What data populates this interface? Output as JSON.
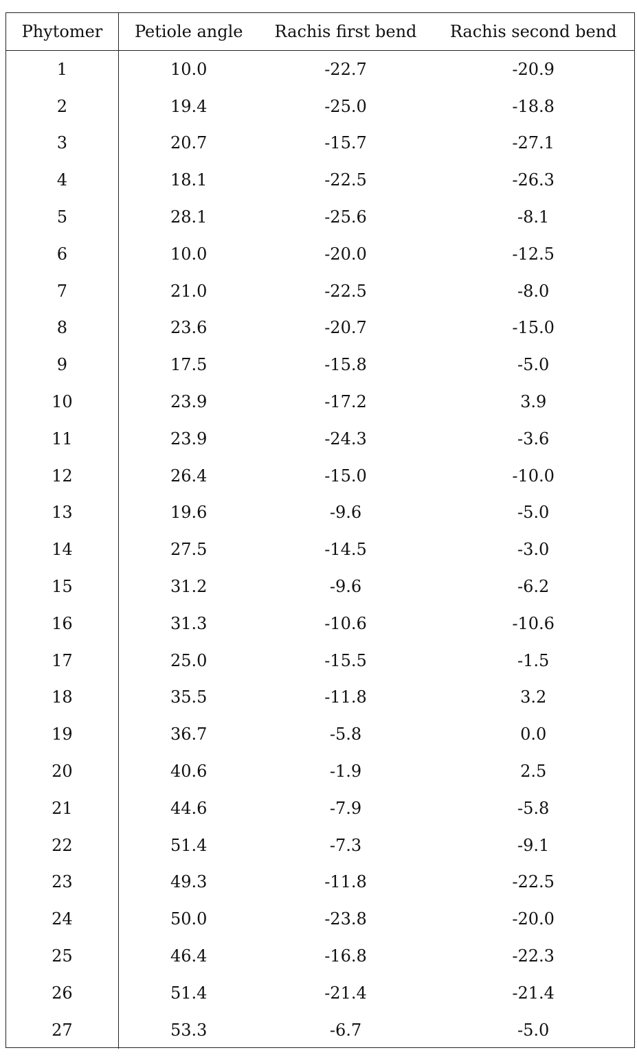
{
  "table": {
    "headers": [
      "Phytomer",
      "Petiole angle",
      "Rachis first bend",
      "Rachis second bend"
    ],
    "rows": [
      [
        "1",
        "10.0",
        "-22.7",
        "-20.9"
      ],
      [
        "2",
        "19.4",
        "-25.0",
        "-18.8"
      ],
      [
        "3",
        "20.7",
        "-15.7",
        "-27.1"
      ],
      [
        "4",
        "18.1",
        "-22.5",
        "-26.3"
      ],
      [
        "5",
        "28.1",
        "-25.6",
        "-8.1"
      ],
      [
        "6",
        "10.0",
        "-20.0",
        "-12.5"
      ],
      [
        "7",
        "21.0",
        "-22.5",
        "-8.0"
      ],
      [
        "8",
        "23.6",
        "-20.7",
        "-15.0"
      ],
      [
        "9",
        "17.5",
        "-15.8",
        "-5.0"
      ],
      [
        "10",
        "23.9",
        "-17.2",
        "3.9"
      ],
      [
        "11",
        "23.9",
        "-24.3",
        "-3.6"
      ],
      [
        "12",
        "26.4",
        "-15.0",
        "-10.0"
      ],
      [
        "13",
        "19.6",
        "-9.6",
        "-5.0"
      ],
      [
        "14",
        "27.5",
        "-14.5",
        "-3.0"
      ],
      [
        "15",
        "31.2",
        "-9.6",
        "-6.2"
      ],
      [
        "16",
        "31.3",
        "-10.6",
        "-10.6"
      ],
      [
        "17",
        "25.0",
        "-15.5",
        "-1.5"
      ],
      [
        "18",
        "35.5",
        "-11.8",
        "3.2"
      ],
      [
        "19",
        "36.7",
        "-5.8",
        "0.0"
      ],
      [
        "20",
        "40.6",
        "-1.9",
        "2.5"
      ],
      [
        "21",
        "44.6",
        "-7.9",
        "-5.8"
      ],
      [
        "22",
        "51.4",
        "-7.3",
        "-9.1"
      ],
      [
        "23",
        "49.3",
        "-11.8",
        "-22.5"
      ],
      [
        "24",
        "50.0",
        "-23.8",
        "-20.0"
      ],
      [
        "25",
        "46.4",
        "-16.8",
        "-22.3"
      ],
      [
        "26",
        "51.4",
        "-21.4",
        "-21.4"
      ],
      [
        "27",
        "53.3",
        "-6.7",
        "-5.0"
      ]
    ]
  }
}
